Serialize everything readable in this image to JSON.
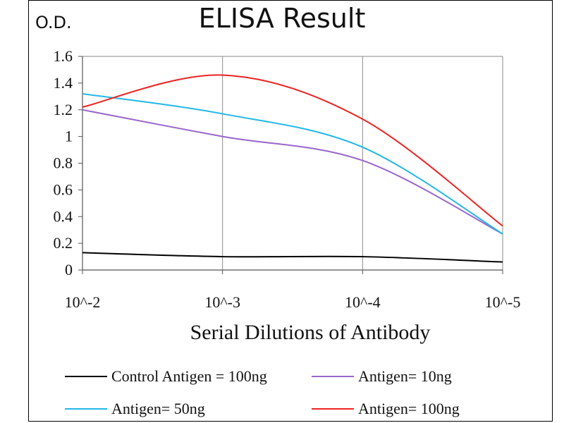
{
  "chart_data": {
    "type": "line",
    "title": "ELISA Result",
    "ylabel": "O.D.",
    "xlabel": "Serial Dilutions  of Antibody",
    "categories": [
      "10^-2",
      "10^-3",
      "10^-4",
      "10^-5"
    ],
    "ylim": [
      0,
      1.6
    ],
    "yticks": [
      "0",
      "0.2",
      "0.4",
      "0.6",
      "0.8",
      "1",
      "1.2",
      "1.4",
      "1.6"
    ],
    "grid": "vertical",
    "legend_position": "bottom",
    "series": [
      {
        "name": "Control Antigen = 100ng",
        "color": "#000000",
        "values": [
          0.13,
          0.1,
          0.1,
          0.06
        ]
      },
      {
        "name": "Antigen= 10ng",
        "color": "#9966cc",
        "values": [
          1.2,
          1.0,
          0.82,
          0.27
        ]
      },
      {
        "name": "Antigen= 50ng",
        "color": "#22b8e6",
        "values": [
          1.32,
          1.17,
          0.92,
          0.27
        ]
      },
      {
        "name": "Antigen= 100ng",
        "color": "#ee2222",
        "values": [
          1.22,
          1.46,
          1.13,
          0.33
        ]
      }
    ]
  }
}
